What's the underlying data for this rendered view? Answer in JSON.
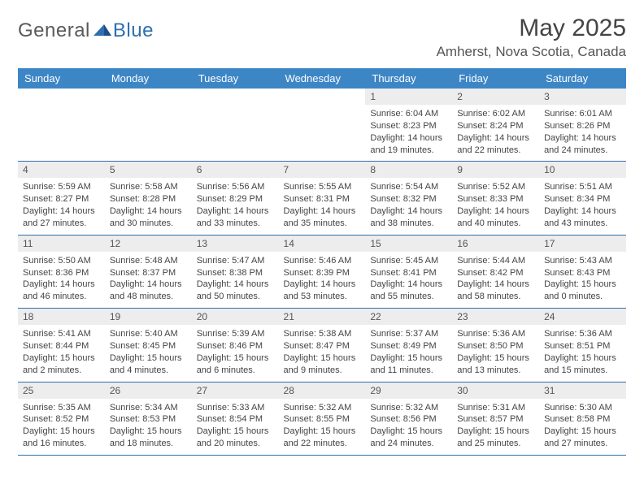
{
  "logo": {
    "word1": "General",
    "word2": "Blue"
  },
  "title": "May 2025",
  "location": "Amherst, Nova Scotia, Canada",
  "colors": {
    "header_bg": "#3d86c6",
    "header_text": "#ffffff",
    "border": "#2f6fae",
    "daynum_bg": "#ededed",
    "logo_gray": "#5a5a5a",
    "logo_blue": "#2f6fae",
    "page_bg": "#ffffff"
  },
  "dayNames": [
    "Sunday",
    "Monday",
    "Tuesday",
    "Wednesday",
    "Thursday",
    "Friday",
    "Saturday"
  ],
  "weeks": [
    [
      {
        "n": "",
        "empty": true
      },
      {
        "n": "",
        "empty": true
      },
      {
        "n": "",
        "empty": true
      },
      {
        "n": "",
        "empty": true
      },
      {
        "n": "1",
        "sunrise": "6:04 AM",
        "sunset": "8:23 PM",
        "dl1": "Daylight: 14 hours",
        "dl2": "and 19 minutes."
      },
      {
        "n": "2",
        "sunrise": "6:02 AM",
        "sunset": "8:24 PM",
        "dl1": "Daylight: 14 hours",
        "dl2": "and 22 minutes."
      },
      {
        "n": "3",
        "sunrise": "6:01 AM",
        "sunset": "8:26 PM",
        "dl1": "Daylight: 14 hours",
        "dl2": "and 24 minutes."
      }
    ],
    [
      {
        "n": "4",
        "sunrise": "5:59 AM",
        "sunset": "8:27 PM",
        "dl1": "Daylight: 14 hours",
        "dl2": "and 27 minutes."
      },
      {
        "n": "5",
        "sunrise": "5:58 AM",
        "sunset": "8:28 PM",
        "dl1": "Daylight: 14 hours",
        "dl2": "and 30 minutes."
      },
      {
        "n": "6",
        "sunrise": "5:56 AM",
        "sunset": "8:29 PM",
        "dl1": "Daylight: 14 hours",
        "dl2": "and 33 minutes."
      },
      {
        "n": "7",
        "sunrise": "5:55 AM",
        "sunset": "8:31 PM",
        "dl1": "Daylight: 14 hours",
        "dl2": "and 35 minutes."
      },
      {
        "n": "8",
        "sunrise": "5:54 AM",
        "sunset": "8:32 PM",
        "dl1": "Daylight: 14 hours",
        "dl2": "and 38 minutes."
      },
      {
        "n": "9",
        "sunrise": "5:52 AM",
        "sunset": "8:33 PM",
        "dl1": "Daylight: 14 hours",
        "dl2": "and 40 minutes."
      },
      {
        "n": "10",
        "sunrise": "5:51 AM",
        "sunset": "8:34 PM",
        "dl1": "Daylight: 14 hours",
        "dl2": "and 43 minutes."
      }
    ],
    [
      {
        "n": "11",
        "sunrise": "5:50 AM",
        "sunset": "8:36 PM",
        "dl1": "Daylight: 14 hours",
        "dl2": "and 46 minutes."
      },
      {
        "n": "12",
        "sunrise": "5:48 AM",
        "sunset": "8:37 PM",
        "dl1": "Daylight: 14 hours",
        "dl2": "and 48 minutes."
      },
      {
        "n": "13",
        "sunrise": "5:47 AM",
        "sunset": "8:38 PM",
        "dl1": "Daylight: 14 hours",
        "dl2": "and 50 minutes."
      },
      {
        "n": "14",
        "sunrise": "5:46 AM",
        "sunset": "8:39 PM",
        "dl1": "Daylight: 14 hours",
        "dl2": "and 53 minutes."
      },
      {
        "n": "15",
        "sunrise": "5:45 AM",
        "sunset": "8:41 PM",
        "dl1": "Daylight: 14 hours",
        "dl2": "and 55 minutes."
      },
      {
        "n": "16",
        "sunrise": "5:44 AM",
        "sunset": "8:42 PM",
        "dl1": "Daylight: 14 hours",
        "dl2": "and 58 minutes."
      },
      {
        "n": "17",
        "sunrise": "5:43 AM",
        "sunset": "8:43 PM",
        "dl1": "Daylight: 15 hours",
        "dl2": "and 0 minutes."
      }
    ],
    [
      {
        "n": "18",
        "sunrise": "5:41 AM",
        "sunset": "8:44 PM",
        "dl1": "Daylight: 15 hours",
        "dl2": "and 2 minutes."
      },
      {
        "n": "19",
        "sunrise": "5:40 AM",
        "sunset": "8:45 PM",
        "dl1": "Daylight: 15 hours",
        "dl2": "and 4 minutes."
      },
      {
        "n": "20",
        "sunrise": "5:39 AM",
        "sunset": "8:46 PM",
        "dl1": "Daylight: 15 hours",
        "dl2": "and 6 minutes."
      },
      {
        "n": "21",
        "sunrise": "5:38 AM",
        "sunset": "8:47 PM",
        "dl1": "Daylight: 15 hours",
        "dl2": "and 9 minutes."
      },
      {
        "n": "22",
        "sunrise": "5:37 AM",
        "sunset": "8:49 PM",
        "dl1": "Daylight: 15 hours",
        "dl2": "and 11 minutes."
      },
      {
        "n": "23",
        "sunrise": "5:36 AM",
        "sunset": "8:50 PM",
        "dl1": "Daylight: 15 hours",
        "dl2": "and 13 minutes."
      },
      {
        "n": "24",
        "sunrise": "5:36 AM",
        "sunset": "8:51 PM",
        "dl1": "Daylight: 15 hours",
        "dl2": "and 15 minutes."
      }
    ],
    [
      {
        "n": "25",
        "sunrise": "5:35 AM",
        "sunset": "8:52 PM",
        "dl1": "Daylight: 15 hours",
        "dl2": "and 16 minutes."
      },
      {
        "n": "26",
        "sunrise": "5:34 AM",
        "sunset": "8:53 PM",
        "dl1": "Daylight: 15 hours",
        "dl2": "and 18 minutes."
      },
      {
        "n": "27",
        "sunrise": "5:33 AM",
        "sunset": "8:54 PM",
        "dl1": "Daylight: 15 hours",
        "dl2": "and 20 minutes."
      },
      {
        "n": "28",
        "sunrise": "5:32 AM",
        "sunset": "8:55 PM",
        "dl1": "Daylight: 15 hours",
        "dl2": "and 22 minutes."
      },
      {
        "n": "29",
        "sunrise": "5:32 AM",
        "sunset": "8:56 PM",
        "dl1": "Daylight: 15 hours",
        "dl2": "and 24 minutes."
      },
      {
        "n": "30",
        "sunrise": "5:31 AM",
        "sunset": "8:57 PM",
        "dl1": "Daylight: 15 hours",
        "dl2": "and 25 minutes."
      },
      {
        "n": "31",
        "sunrise": "5:30 AM",
        "sunset": "8:58 PM",
        "dl1": "Daylight: 15 hours",
        "dl2": "and 27 minutes."
      }
    ]
  ],
  "labels": {
    "sunrise": "Sunrise:",
    "sunset": "Sunset:"
  }
}
